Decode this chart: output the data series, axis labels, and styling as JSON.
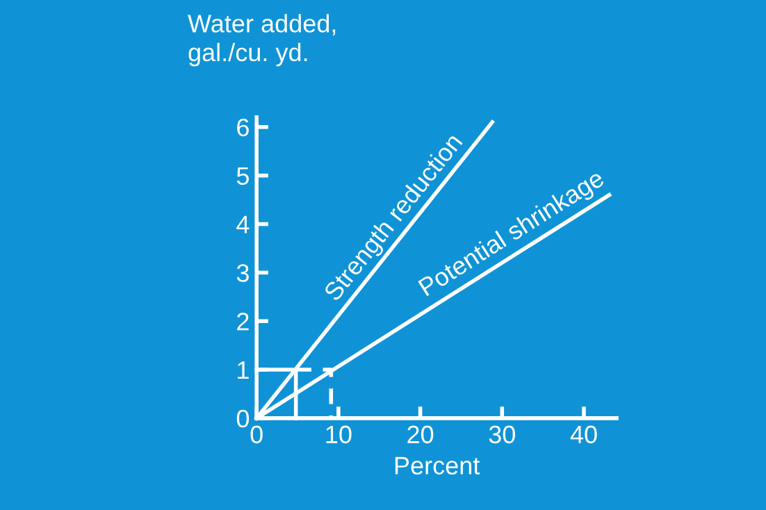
{
  "chart_data": {
    "type": "line",
    "ylabel": "Water added,\ngal./cu. yd.",
    "xlabel": "Percent",
    "series": [
      {
        "x": [
          0,
          28.8
        ],
        "values": [
          0,
          6.1
        ],
        "color": "#ffffff",
        "line_style": "solid"
      },
      {
        "x": [
          0,
          43.1
        ],
        "values": [
          0,
          4.6
        ],
        "color": "#ffffff",
        "line_style": "solid"
      },
      {
        "x": [
          0,
          4.8,
          4.8
        ],
        "values": [
          1,
          1,
          0
        ],
        "color": "#ffffff",
        "line_style": "solid"
      },
      {
        "x": [
          4.8,
          9.1,
          9.1
        ],
        "values": [
          1,
          1,
          0
        ],
        "color": "#ffffff",
        "line_style": "dashed"
      }
    ],
    "annotations": [
      {
        "text": "Strength reduction",
        "x": 18,
        "y": 3.81
      },
      {
        "text": "Potential shrinkage",
        "x": 32,
        "y": 3.42
      }
    ],
    "xlim": [
      0,
      44
    ],
    "ylim": [
      0,
      6.2
    ],
    "xticks": [
      0,
      10,
      20,
      30,
      40
    ],
    "yticks": [
      0,
      1,
      2,
      3,
      4,
      5,
      6
    ],
    "grid": false,
    "legend": false,
    "marker": "none"
  }
}
